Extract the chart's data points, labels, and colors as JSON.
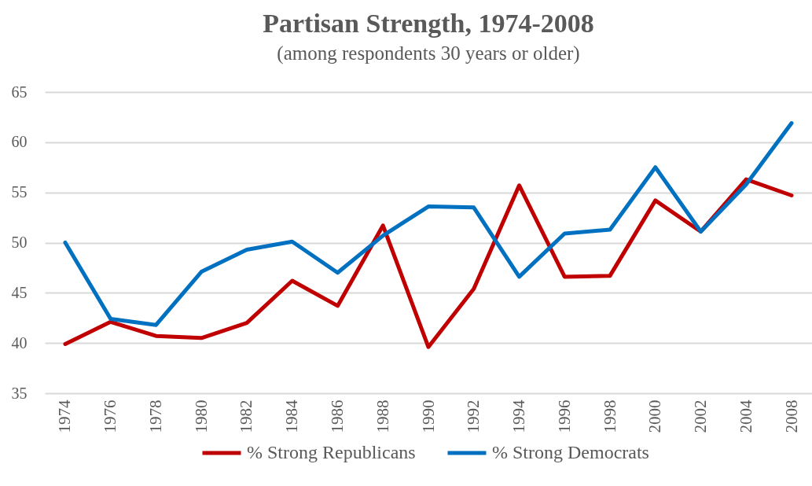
{
  "chart_data": {
    "type": "line",
    "title": "Partisan Strength, 1974-2008",
    "subtitle": "(among respondents 30 years or older)",
    "categories": [
      "1974",
      "1976",
      "1978",
      "1980",
      "1982",
      "1984",
      "1986",
      "1988",
      "1990",
      "1992",
      "1994",
      "1996",
      "1998",
      "2000",
      "2002",
      "2004",
      "2008"
    ],
    "series": [
      {
        "name": "% Strong Republicans",
        "color": "#c00000",
        "values": [
          39.9,
          42.1,
          40.7,
          40.5,
          42.0,
          46.2,
          43.7,
          51.7,
          39.6,
          45.4,
          55.7,
          46.6,
          46.7,
          54.2,
          51.1,
          56.3,
          54.7
        ]
      },
      {
        "name": "% Strong Democrats",
        "color": "#0070c0",
        "values": [
          50.0,
          42.4,
          41.8,
          47.1,
          49.3,
          50.1,
          47.0,
          50.7,
          53.6,
          53.5,
          46.6,
          50.9,
          51.3,
          57.5,
          51.1,
          55.8,
          61.9
        ]
      }
    ],
    "ylim": [
      35,
      65
    ],
    "yticks": [
      35,
      40,
      45,
      50,
      55,
      60,
      65
    ],
    "grid": "y",
    "legend": "bottom",
    "line_style": "solid"
  }
}
